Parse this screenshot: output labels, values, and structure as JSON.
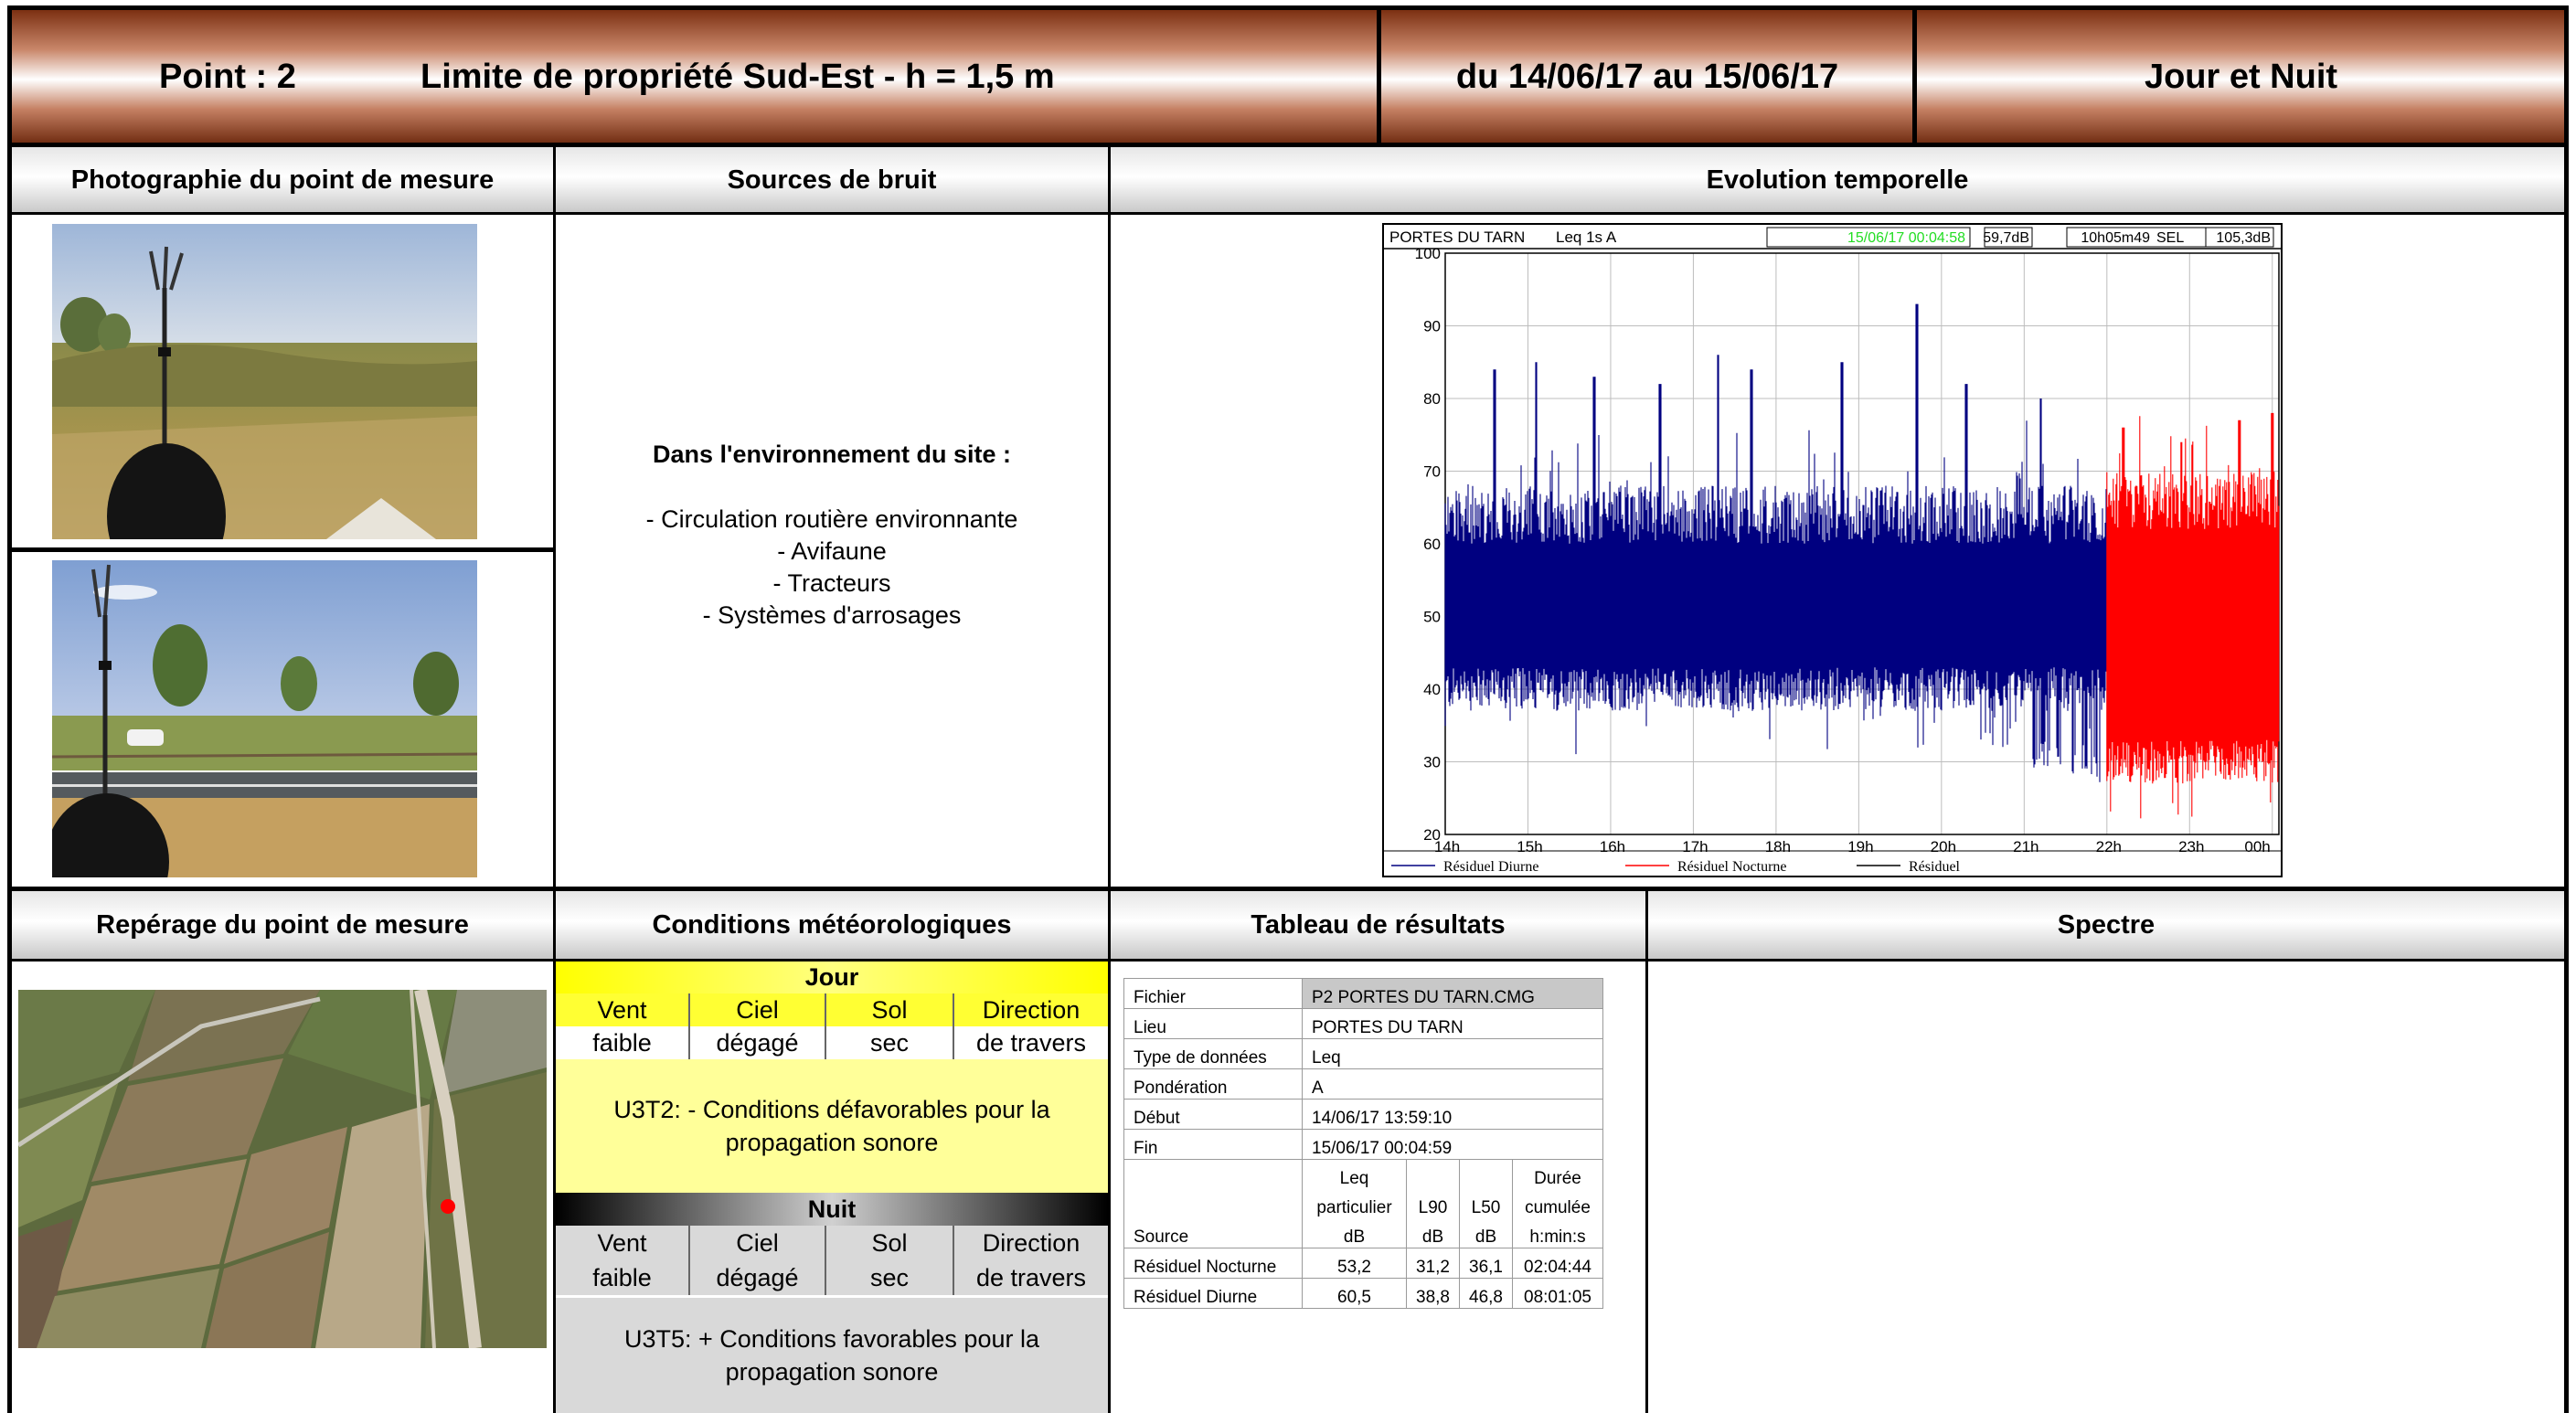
{
  "header": {
    "point_label": "Point :  2",
    "point_location": "Limite de propriété Sud-Est - h = 1,5 m",
    "period": "du 14/06/17 au 15/06/17",
    "time_range": "Jour et Nuit"
  },
  "sections": {
    "photo": "Photographie du point de mesure",
    "sources": "Sources de bruit",
    "evolution": "Evolution temporelle",
    "location": "Repérage du point de mesure",
    "meteo": "Conditions météorologiques",
    "results": "Tableau de résultats",
    "spectrum": "Spectre"
  },
  "sources": {
    "title": "Dans l'environnement du site :",
    "items": [
      "- Circulation routière environnante",
      "- Avifaune",
      "- Tracteurs",
      "- Systèmes d'arrosages"
    ]
  },
  "meteo": {
    "day": {
      "title": "Jour",
      "headers": [
        "Vent",
        "Ciel",
        "Sol",
        "Direction"
      ],
      "values": [
        "faible",
        "dégagé",
        "sec",
        "de travers"
      ],
      "condition": "U3T2: - Conditions défavorables pour la propagation sonore"
    },
    "night": {
      "title": "Nuit",
      "headers": [
        "Vent",
        "Ciel",
        "Sol",
        "Direction"
      ],
      "values": [
        "faible",
        "dégagé",
        "sec",
        "de travers"
      ],
      "condition": "U3T5: + Conditions favorables pour la propagation sonore"
    },
    "colors": {
      "day_header": "#ffff33",
      "day_body": "#ffff99",
      "night_body": "#d9d9d9"
    }
  },
  "results": {
    "file_label": "Fichier",
    "file_value": "P2 PORTES DU TARN.CMG",
    "place_label": "Lieu",
    "place_value": "PORTES DU TARN",
    "type_label": "Type de données",
    "type_value": "Leq",
    "weight_label": "Pondération",
    "weight_value": "A",
    "start_label": "Début",
    "start_value": "14/06/17 13:59:10",
    "end_label": "Fin",
    "end_value": "15/06/17 00:04:59",
    "col_headers": {
      "source": "Source",
      "leq": [
        "Leq",
        "particulier",
        "dB"
      ],
      "l90": [
        "L90",
        "dB"
      ],
      "l50": [
        "L50",
        "dB"
      ],
      "duration": [
        "Durée",
        "cumulée",
        "h:min:s"
      ]
    },
    "rows": [
      {
        "source": "Résiduel Nocturne",
        "leq": "53,2",
        "l90": "31,2",
        "l50": "36,1",
        "duration": "02:04:44"
      },
      {
        "source": "Résiduel Diurne",
        "leq": "60,5",
        "l90": "38,8",
        "l50": "46,8",
        "duration": "08:01:05"
      }
    ]
  },
  "chart_data": {
    "type": "line",
    "title": "PORTES DU TARN",
    "indicator": "Leq 1s  A",
    "cursor_time": "15/06/17 00:04:58",
    "cursor_level": "59,7dB",
    "duration": "10h05m49",
    "sel_label": "SEL",
    "sel_value": "105,3dB",
    "x_ticks": [
      "14h",
      "15h",
      "16h",
      "17h",
      "18h",
      "19h",
      "20h",
      "21h",
      "22h",
      "23h",
      "00h"
    ],
    "y_ticks": [
      20,
      30,
      40,
      50,
      60,
      70,
      80,
      90,
      100
    ],
    "ylim": [
      20,
      100
    ],
    "xlim_hours": [
      14.0,
      24.08
    ],
    "grid": true,
    "legend_position": "bottom",
    "series": [
      {
        "name": "Résiduel Diurne",
        "color": "#000080",
        "x_hours": [
          14.0,
          22.0
        ],
        "typical_low": 40,
        "typical_high": 68,
        "peaks": [
          [
            14.6,
            84
          ],
          [
            15.1,
            85
          ],
          [
            15.8,
            83
          ],
          [
            16.6,
            82
          ],
          [
            17.3,
            86
          ],
          [
            17.7,
            84
          ],
          [
            18.8,
            85
          ],
          [
            19.7,
            93
          ],
          [
            20.3,
            82
          ],
          [
            21.2,
            80
          ]
        ],
        "dips": [
          [
            20.9,
            32
          ],
          [
            21.2,
            29
          ],
          [
            21.5,
            28
          ],
          [
            21.8,
            27
          ]
        ]
      },
      {
        "name": "Résiduel Nocturne",
        "color": "#ff0000",
        "x_hours": [
          22.0,
          24.08
        ],
        "typical_low": 30,
        "typical_high": 70,
        "peaks": [
          [
            22.2,
            76
          ],
          [
            22.9,
            74
          ],
          [
            23.6,
            77
          ],
          [
            24.0,
            78
          ]
        ],
        "dips": [
          [
            22.1,
            27
          ],
          [
            22.7,
            28
          ],
          [
            23.3,
            28
          ],
          [
            24.0,
            29
          ]
        ]
      },
      {
        "name": "Résiduel",
        "color": "#000000",
        "x_hours": []
      }
    ]
  }
}
